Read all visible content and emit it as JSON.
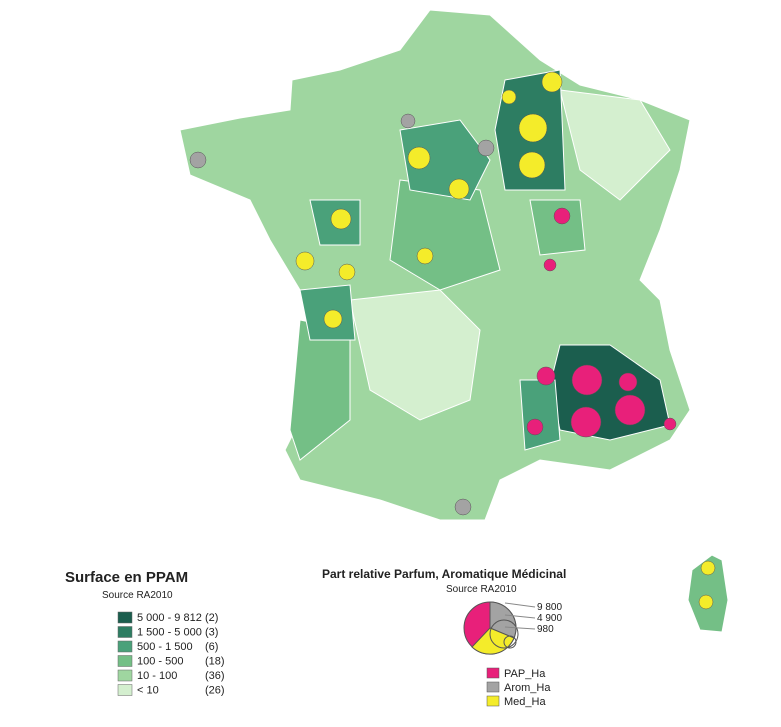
{
  "legend_surface": {
    "title": "Surface en PPAM",
    "source": "Source RA2010",
    "classes": [
      {
        "range": "5 000 - 9 812",
        "count": "(2)",
        "color": "#1b5e4e"
      },
      {
        "range": "1 500 - 5 000",
        "count": "(3)",
        "color": "#2d7d62"
      },
      {
        "range": "500 - 1 500",
        "count": "(6)",
        "color": "#4aa17a"
      },
      {
        "range": "100 -   500",
        "count": "(18)",
        "color": "#74bf86"
      },
      {
        "range": "10 -   100",
        "count": "(36)",
        "color": "#9fd6a0"
      },
      {
        "range": "< 10",
        "count": "(26)",
        "color": "#d4efcf"
      }
    ]
  },
  "legend_pies": {
    "title": "Part relative Parfum, Aromatique Médicinal",
    "source": "Source RA2010",
    "sizes": [
      "9 800",
      "4 900",
      "980"
    ],
    "items": [
      {
        "name": "PAP_Ha",
        "color": "#e8207a"
      },
      {
        "name": "Arom_Ha",
        "color": "#a3a3a3"
      },
      {
        "name": "Med_Ha",
        "color": "#f4ec2a"
      }
    ]
  }
}
